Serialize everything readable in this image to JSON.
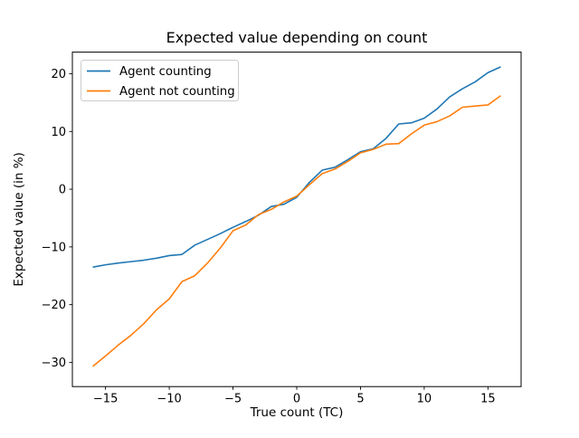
{
  "chart_data": {
    "type": "line",
    "title": "Expected value depending on count",
    "xlabel": "True count (TC)",
    "ylabel": "Expected value (in %)",
    "xlim": [
      -17.6,
      17.6
    ],
    "ylim": [
      -34.2,
      23.75
    ],
    "grid": false,
    "legend_position": "upper-left",
    "x": [
      -16,
      -15,
      -14,
      -13,
      -12,
      -11,
      -10,
      -9,
      -8,
      -7,
      -6,
      -5,
      -4,
      -3,
      -2,
      -1,
      0,
      1,
      2,
      3,
      4,
      5,
      6,
      7,
      8,
      9,
      10,
      11,
      12,
      13,
      14,
      15,
      16
    ],
    "series": [
      {
        "name": "Agent counting",
        "color": "#1f77b4",
        "values": [
          -13.5,
          -13.1,
          -12.8,
          -12.55,
          -12.3,
          -11.95,
          -11.5,
          -11.3,
          -9.7,
          -8.7,
          -7.7,
          -6.6,
          -5.6,
          -4.5,
          -3.0,
          -2.6,
          -1.4,
          1.2,
          3.3,
          3.8,
          5.1,
          6.5,
          7.0,
          8.8,
          11.3,
          11.5,
          12.3,
          13.9,
          16.0,
          17.4,
          18.6,
          20.2,
          21.2
        ]
      },
      {
        "name": "Agent not counting",
        "color": "#ff7f0e",
        "values": [
          -30.7,
          -28.9,
          -27.0,
          -25.3,
          -23.3,
          -20.9,
          -19.0,
          -16.0,
          -15.0,
          -12.8,
          -10.2,
          -7.2,
          -6.2,
          -4.4,
          -3.5,
          -2.2,
          -1.2,
          0.8,
          2.7,
          3.5,
          4.8,
          6.3,
          6.9,
          7.8,
          7.9,
          9.6,
          11.1,
          11.7,
          12.7,
          14.2,
          14.4,
          14.6,
          16.2
        ]
      }
    ],
    "xticks": {
      "values": [
        -15,
        -10,
        -5,
        0,
        5,
        10,
        15
      ],
      "labels": [
        "−15",
        "−10",
        "−5",
        "0",
        "5",
        "10",
        "15"
      ]
    },
    "yticks": {
      "values": [
        20,
        10,
        0,
        -10,
        -20,
        -30
      ],
      "labels": [
        "20",
        "10",
        "0",
        "−10",
        "−20",
        "−30"
      ]
    }
  }
}
